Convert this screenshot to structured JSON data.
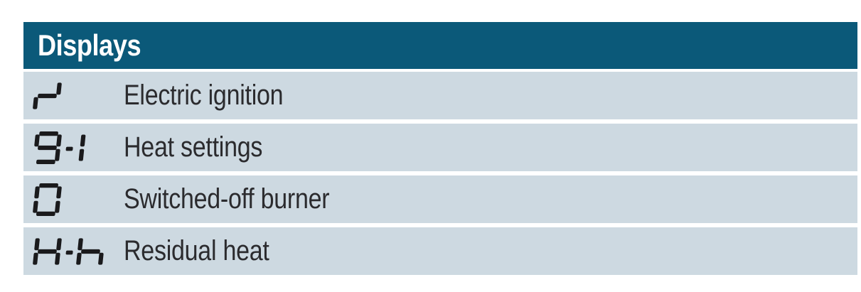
{
  "table": {
    "title": "Displays",
    "colors": {
      "header_bg": "#0b5979",
      "header_fg": "#ffffff",
      "row_bg": "#cdd9e1",
      "label_fg": "#2b2b2e",
      "segment_fg": "#1a1a1c"
    },
    "rows": [
      {
        "symbol_name": "electric-ignition-display-symbol",
        "symbol_text": "seven-segment ignition glyph",
        "symbol_chars": [
          {
            "type": "seg",
            "segments": [
              "B",
              "G",
              "E"
            ]
          }
        ],
        "label": "Electric ignition"
      },
      {
        "symbol_name": "heat-settings-display-symbol",
        "symbol_text": "9-1",
        "symbol_chars": [
          {
            "type": "seg",
            "segments": [
              "A",
              "B",
              "C",
              "D",
              "F",
              "G"
            ]
          },
          {
            "type": "dash"
          },
          {
            "type": "seg",
            "narrow": true,
            "segments": [
              "B",
              "C"
            ]
          }
        ],
        "label": "Heat settings"
      },
      {
        "symbol_name": "switched-off-burner-display-symbol",
        "symbol_text": "0",
        "symbol_chars": [
          {
            "type": "seg",
            "segments": [
              "A",
              "B",
              "C",
              "D",
              "E",
              "F"
            ]
          }
        ],
        "label": "Switched-off burner"
      },
      {
        "symbol_name": "residual-heat-display-symbol",
        "symbol_text": "H-h",
        "symbol_chars": [
          {
            "type": "seg",
            "segments": [
              "B",
              "C",
              "E",
              "F",
              "G"
            ]
          },
          {
            "type": "dash"
          },
          {
            "type": "seg",
            "segments": [
              "C",
              "E",
              "F",
              "G"
            ]
          }
        ],
        "label": "Residual heat"
      }
    ]
  }
}
